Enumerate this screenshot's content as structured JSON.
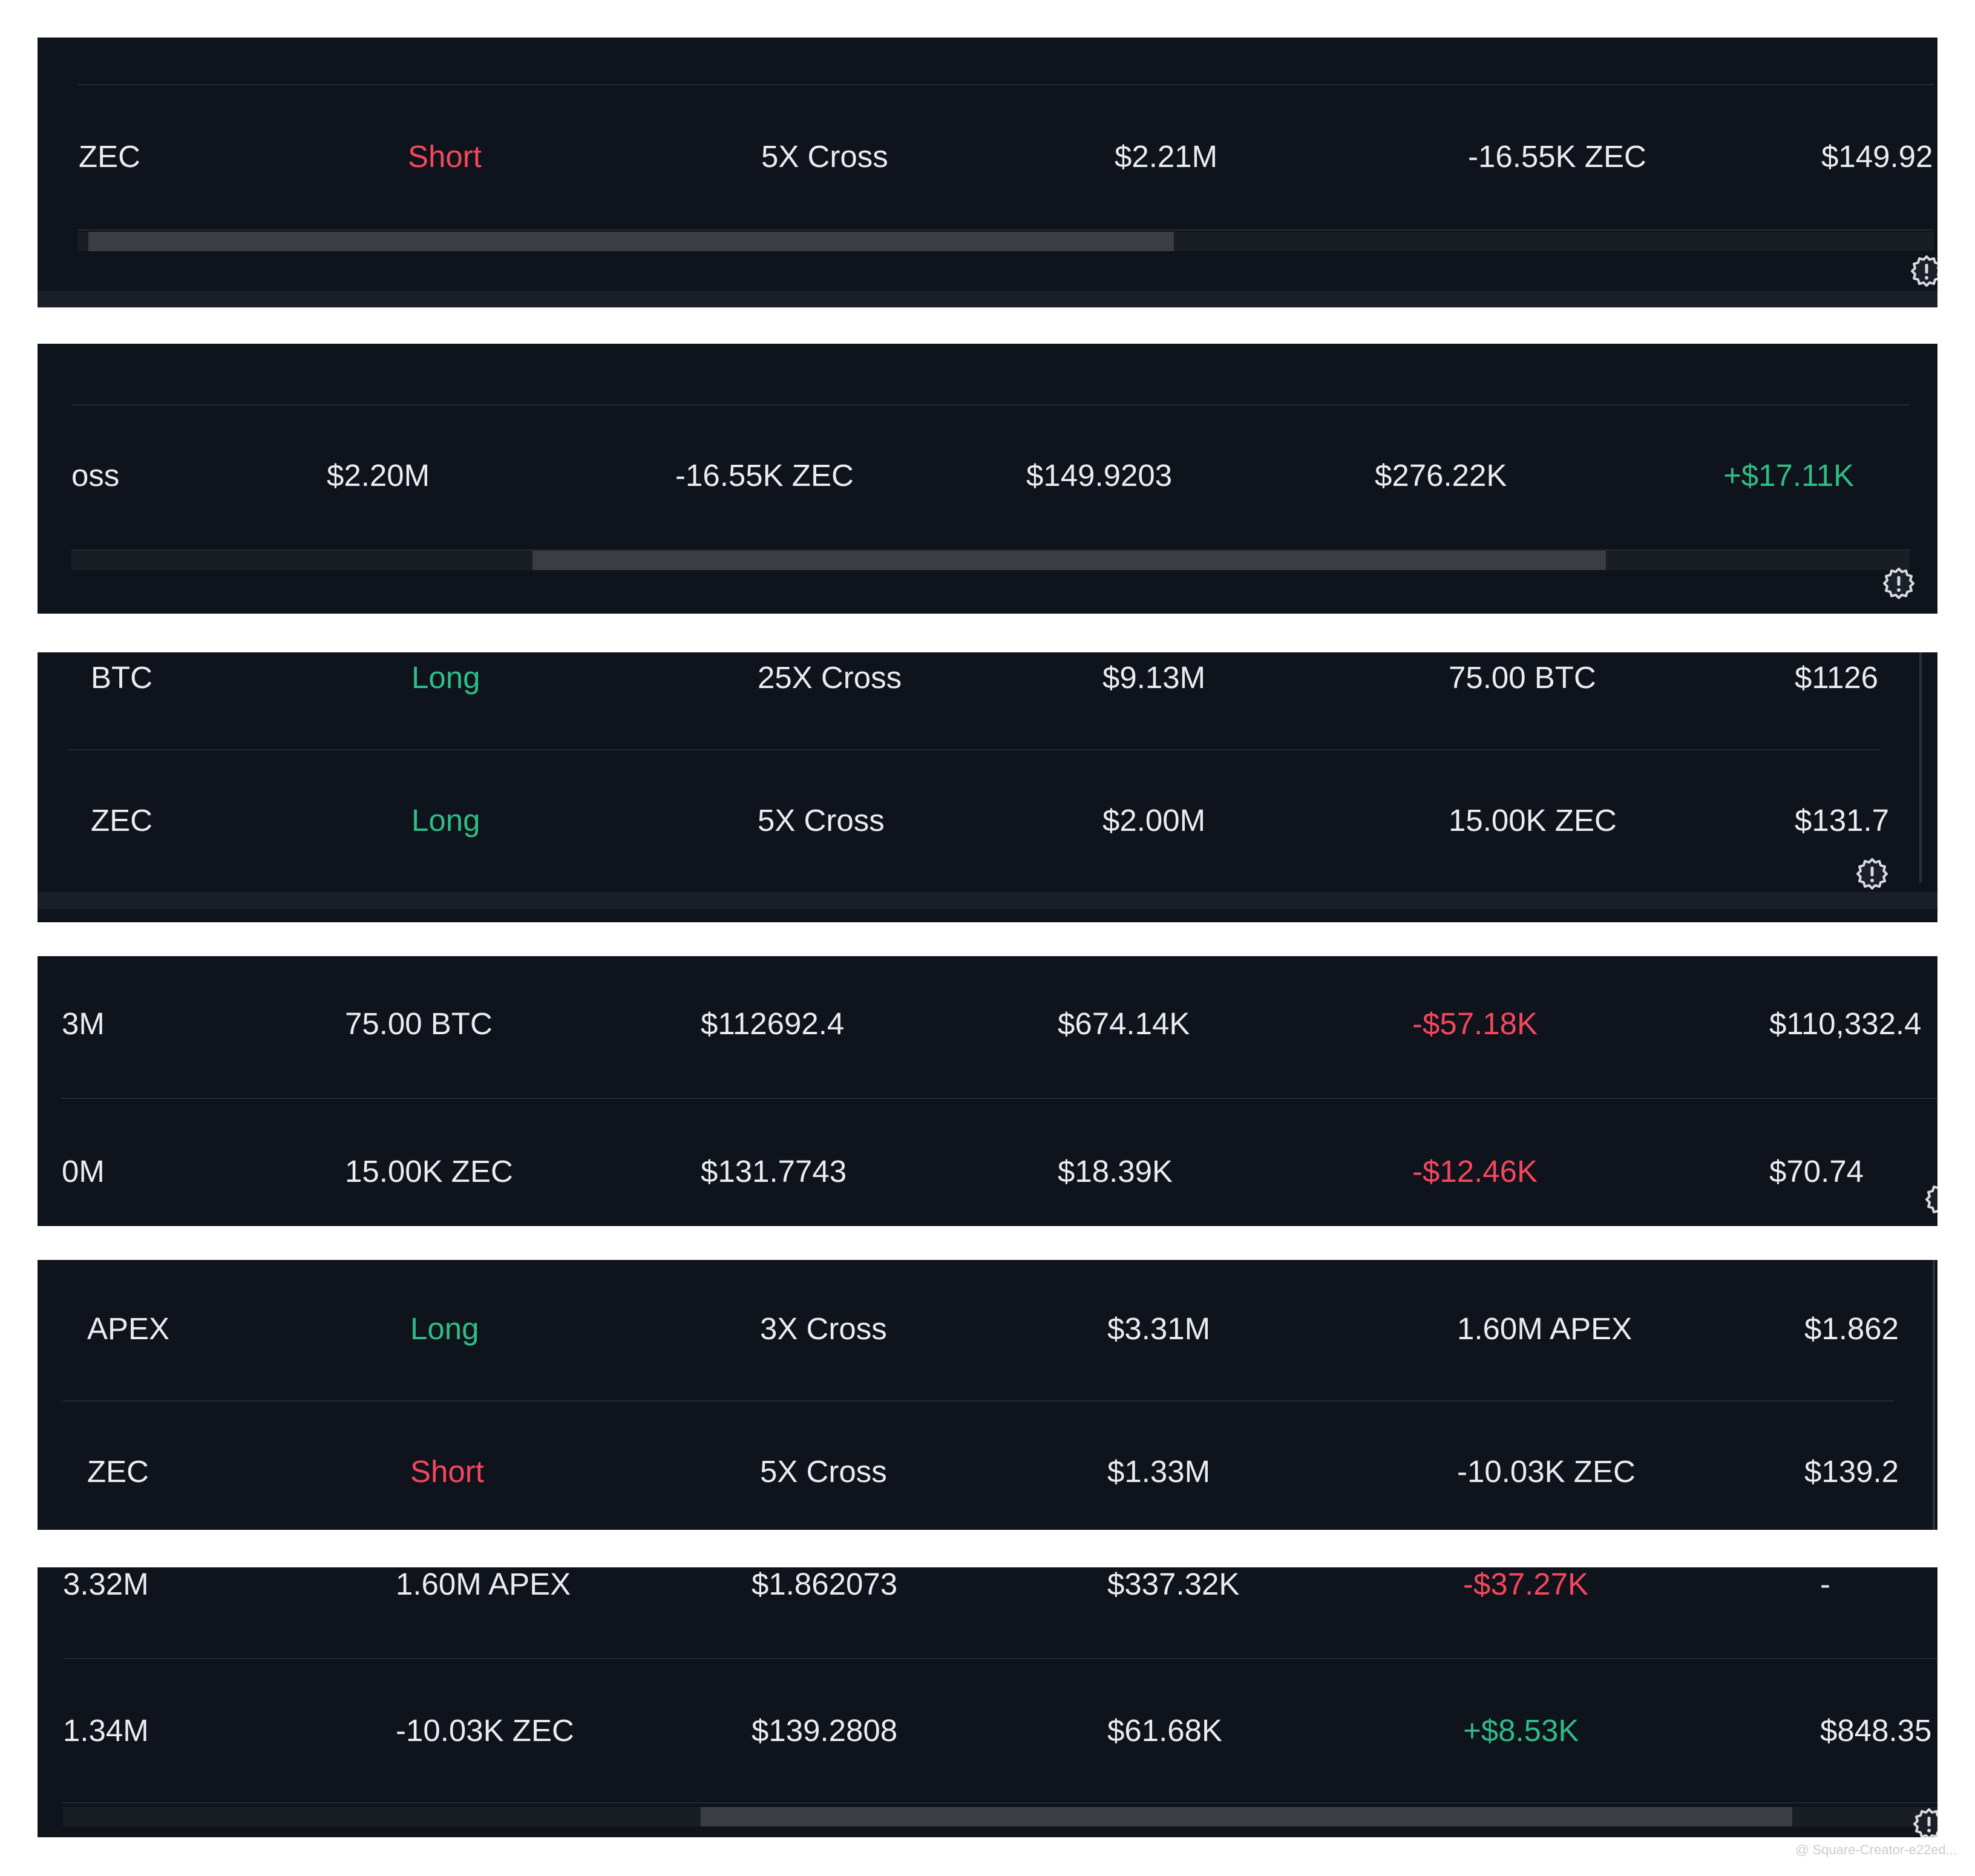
{
  "colors": {
    "background": "#0f131b",
    "text": "#eaecef",
    "short": "#f6465d",
    "long": "#2ebd85",
    "positive": "#2ebd85",
    "negative": "#f6465d"
  },
  "panels": [
    {
      "rows": [
        {
          "cells": [
            {
              "text": "ZEC"
            },
            {
              "text": "Short",
              "tone": "short"
            },
            {
              "text": "5X Cross"
            },
            {
              "text": "$2.21M"
            },
            {
              "text": "-16.55K ZEC"
            },
            {
              "text": "$149.92"
            }
          ]
        }
      ]
    },
    {
      "rows": [
        {
          "cells": [
            {
              "text": "oss"
            },
            {
              "text": "$2.20M"
            },
            {
              "text": "-16.55K ZEC"
            },
            {
              "text": "$149.9203"
            },
            {
              "text": "$276.22K"
            },
            {
              "text": "+$17.11K",
              "tone": "positive"
            }
          ]
        }
      ]
    },
    {
      "rows": [
        {
          "cells": [
            {
              "text": "BTC"
            },
            {
              "text": "Long",
              "tone": "long"
            },
            {
              "text": "25X Cross"
            },
            {
              "text": "$9.13M"
            },
            {
              "text": "75.00 BTC"
            },
            {
              "text": "$1126"
            }
          ]
        },
        {
          "cells": [
            {
              "text": "ZEC"
            },
            {
              "text": "Long",
              "tone": "long"
            },
            {
              "text": "5X Cross"
            },
            {
              "text": "$2.00M"
            },
            {
              "text": "15.00K ZEC"
            },
            {
              "text": "$131.7"
            }
          ]
        }
      ]
    },
    {
      "rows": [
        {
          "cells": [
            {
              "text": "3M"
            },
            {
              "text": "75.00 BTC"
            },
            {
              "text": "$112692.4"
            },
            {
              "text": "$674.14K"
            },
            {
              "text": "-$57.18K",
              "tone": "negative"
            },
            {
              "text": "$110,332.4"
            }
          ]
        },
        {
          "cells": [
            {
              "text": "0M"
            },
            {
              "text": "15.00K ZEC"
            },
            {
              "text": "$131.7743"
            },
            {
              "text": "$18.39K"
            },
            {
              "text": "-$12.46K",
              "tone": "negative"
            },
            {
              "text": "$70.74"
            }
          ]
        }
      ]
    },
    {
      "rows": [
        {
          "cells": [
            {
              "text": "APEX"
            },
            {
              "text": "Long",
              "tone": "long"
            },
            {
              "text": "3X Cross"
            },
            {
              "text": "$3.31M"
            },
            {
              "text": "1.60M APEX"
            },
            {
              "text": "$1.862"
            }
          ]
        },
        {
          "cells": [
            {
              "text": "ZEC"
            },
            {
              "text": "Short",
              "tone": "short"
            },
            {
              "text": "5X Cross"
            },
            {
              "text": "$1.33M"
            },
            {
              "text": "-10.03K ZEC"
            },
            {
              "text": "$139.2"
            }
          ]
        }
      ]
    },
    {
      "rows": [
        {
          "cells": [
            {
              "text": "3.32M"
            },
            {
              "text": "1.60M APEX"
            },
            {
              "text": "$1.862073"
            },
            {
              "text": "$337.32K"
            },
            {
              "text": "-$37.27K",
              "tone": "negative"
            },
            {
              "text": "-"
            }
          ]
        },
        {
          "cells": [
            {
              "text": "1.34M"
            },
            {
              "text": "-10.03K ZEC"
            },
            {
              "text": "$139.2808"
            },
            {
              "text": "$61.68K"
            },
            {
              "text": "+$8.53K",
              "tone": "positive"
            },
            {
              "text": "$848.35"
            }
          ]
        }
      ]
    }
  ],
  "watermark": "@ Square-Creator-e22ed..."
}
